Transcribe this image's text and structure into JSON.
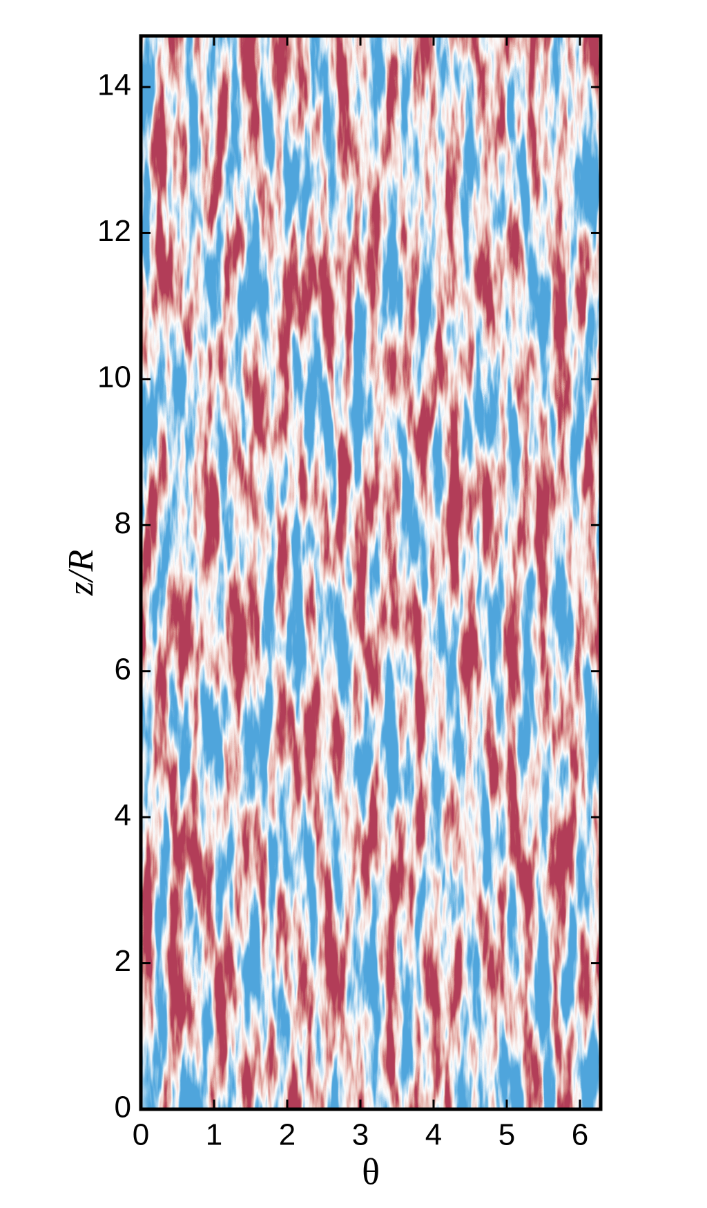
{
  "chart_data": {
    "type": "heatmap",
    "xlabel": "θ",
    "ylabel": "z/R",
    "xlim": [
      0,
      6.283
    ],
    "ylim": [
      0,
      14.7
    ],
    "xticks": [
      0,
      1,
      2,
      3,
      4,
      5,
      6
    ],
    "yticks": [
      0,
      2,
      4,
      6,
      8,
      10,
      12,
      14
    ]
  }
}
